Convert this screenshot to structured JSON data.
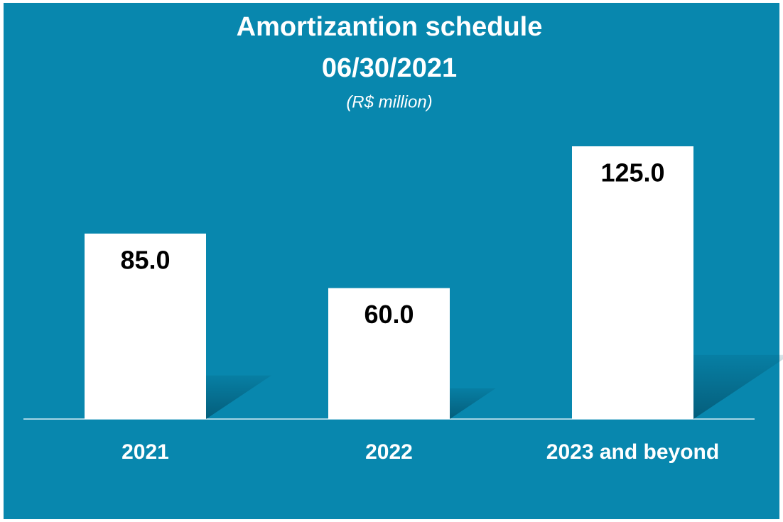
{
  "chart_data": {
    "type": "bar",
    "title": "Amortizantion schedule",
    "subtitle": "06/30/2021",
    "unit_note": "(R$ million)",
    "categories": [
      "2021",
      "2022",
      "2023 and beyond"
    ],
    "values": [
      85,
      60,
      125
    ],
    "value_labels": [
      "85.0",
      "60.0",
      "125.0"
    ],
    "color": "#ffffff",
    "ylim": [
      0,
      125
    ]
  }
}
